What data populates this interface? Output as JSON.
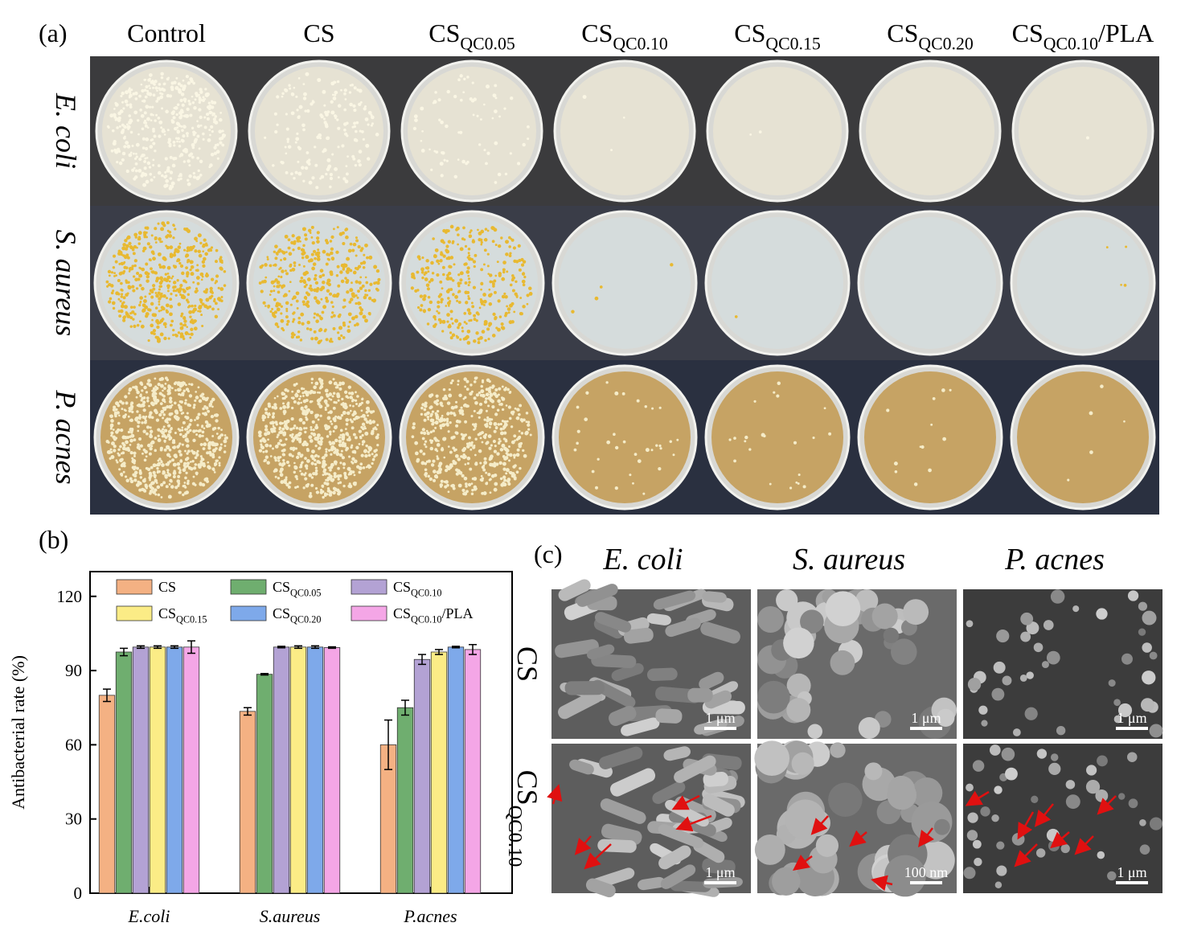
{
  "panel_a": {
    "label": "(a)",
    "columns": [
      {
        "text": "Control"
      },
      {
        "text": "CS"
      },
      {
        "text": "CS",
        "sub": "QC0.05"
      },
      {
        "text": "CS",
        "sub": "QC0.10"
      },
      {
        "text": "CS",
        "sub": "QC0.15"
      },
      {
        "text": "CS",
        "sub": "QC0.20"
      },
      {
        "text": "CS",
        "sub": "QC0.10",
        "suffix": "/PLA"
      }
    ],
    "rows": [
      "E. coli",
      "S. aureus",
      "P. acnes"
    ]
  },
  "chart_data": {
    "type": "bar",
    "label": "(b)",
    "y_label": "Antibacterial rate (%)",
    "categories": [
      "E.coli",
      "S.aureus",
      "P.acnes"
    ],
    "series": [
      {
        "name": "CS",
        "color": "#f4b183",
        "values": [
          80,
          73.5,
          60
        ],
        "errors": [
          2.5,
          1.5,
          10
        ]
      },
      {
        "name": "CS",
        "sub": "QC0.05",
        "color": "#6fae6f",
        "values": [
          97.5,
          88.5,
          75
        ],
        "errors": [
          1.5,
          0.3,
          3
        ]
      },
      {
        "name": "CS",
        "sub": "QC0.10",
        "color": "#b3a2d4",
        "values": [
          99.5,
          99.5,
          94.5
        ],
        "errors": [
          0.5,
          0.3,
          2
        ]
      },
      {
        "name": "CS",
        "sub": "QC0.15",
        "color": "#fbec86",
        "values": [
          99.5,
          99.5,
          97.5
        ],
        "errors": [
          0.5,
          0.5,
          1
        ]
      },
      {
        "name": "CS",
        "sub": "QC0.20",
        "color": "#7ea9ea",
        "values": [
          99.5,
          99.5,
          99.5
        ],
        "errors": [
          0.5,
          0.5,
          0.3
        ]
      },
      {
        "name": "CS",
        "sub": "QC0.10",
        "suffix": "/PLA",
        "color": "#f4a6e6",
        "values": [
          99.5,
          99.3,
          98.5
        ],
        "errors": [
          2.5,
          0.3,
          2
        ]
      }
    ],
    "ylim": [
      0,
      130
    ],
    "yticks": [
      0,
      30,
      60,
      90,
      120
    ],
    "grid": false
  },
  "panel_c": {
    "label": "(c)",
    "columns": [
      "E. coli",
      "S. aureus",
      "P. acnes"
    ],
    "rows": [
      {
        "text": "CS"
      },
      {
        "text": "CS",
        "sub": "QC0.10"
      }
    ],
    "scale_labels": [
      [
        "1 μm",
        "1 μm",
        "1 μm"
      ],
      [
        "1 μm",
        "100 nm",
        "1 μm"
      ]
    ]
  }
}
